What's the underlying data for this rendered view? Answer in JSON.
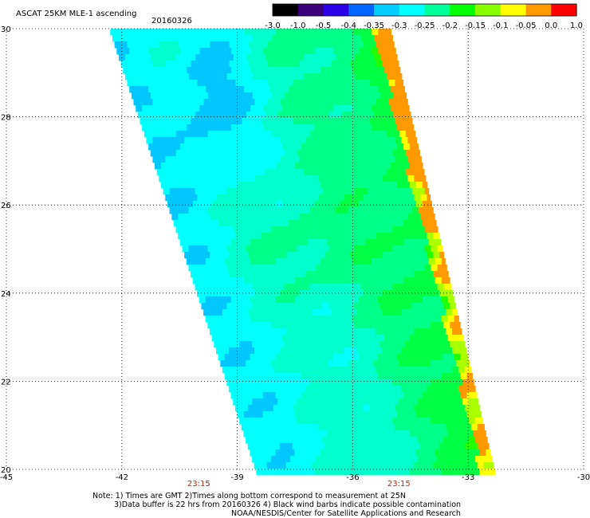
{
  "chart_data": {
    "type": "heatmap",
    "title": "ASCAT 25KM MLE-1 ascending",
    "date": "20160326",
    "colorbar": {
      "labels": [
        "-3.0",
        "-1.0",
        "-0.5",
        "-0.4",
        "-0.35",
        "-0.3",
        "-0.25",
        "-0.2",
        "-0.15",
        "-0.1",
        "-0.05",
        "0.0",
        "1.0"
      ],
      "colors": [
        "#000000",
        "#3a007a",
        "#2a00e8",
        "#0066ff",
        "#00ccff",
        "#00ffff",
        "#00ff99",
        "#00ff00",
        "#88ff00",
        "#ffff00",
        "#ff9900",
        "#ff0000"
      ]
    },
    "x_axis": {
      "range": [
        -45,
        -30
      ],
      "ticks": [
        {
          "value": -45,
          "label": "-45"
        },
        {
          "value": -42,
          "label": "-42"
        },
        {
          "value": -39,
          "label": "-39"
        },
        {
          "value": -36,
          "label": "-36"
        },
        {
          "value": -33,
          "label": "-33"
        },
        {
          "value": -30,
          "label": "-30"
        }
      ]
    },
    "y_axis": {
      "range": [
        20,
        30
      ],
      "ticks": [
        {
          "value": 20,
          "label": "20"
        },
        {
          "value": 22,
          "label": "22"
        },
        {
          "value": 24,
          "label": "24"
        },
        {
          "value": 26,
          "label": "26"
        },
        {
          "value": 28,
          "label": "28"
        },
        {
          "value": 30,
          "label": "30"
        }
      ]
    },
    "grid": true,
    "swath": {
      "west_edge": [
        [
          -42.3,
          30
        ],
        [
          -38.5,
          20
        ]
      ],
      "east_edge": [
        [
          -35.0,
          30
        ],
        [
          -32.3,
          20
        ]
      ]
    },
    "times": [
      {
        "lon": -40.0,
        "label": "23:15"
      },
      {
        "lon": -34.8,
        "label": "23:15"
      }
    ]
  },
  "notes": {
    "line1": "Note: 1) Times are GMT 2)Times along bottom correspond to measurement at 25N",
    "line2": "3)Data buffer is 22 hrs from 20160326 4) Black wind barbs indicate possible contamination",
    "line3": "NOAA/NESDIS/Center for Satellite Applications and Research"
  }
}
